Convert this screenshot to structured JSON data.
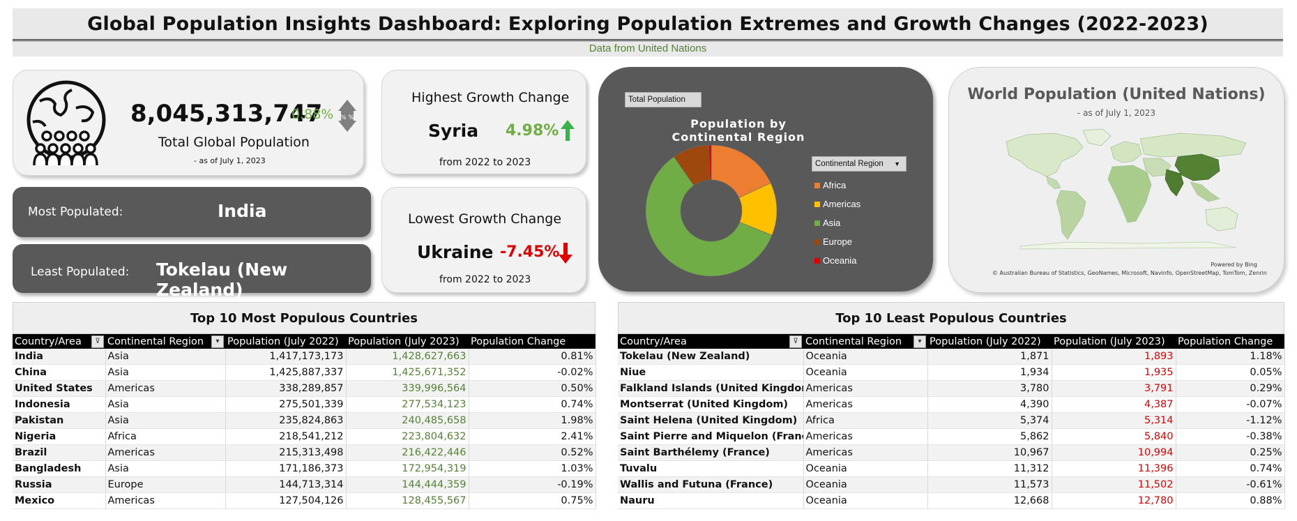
{
  "header": {
    "title": "Global Population Insights Dashboard: Exploring Population Extremes and Growth Changes (2022-2023)",
    "subtitle": "Data from United Nations"
  },
  "total_card": {
    "value": "8,045,313,747",
    "change": "0.88%",
    "icon_label": "% %",
    "label": "Total Global Population",
    "date": "- as of July 1, 2023"
  },
  "most_populated": {
    "label": "Most Populated:",
    "value": "India"
  },
  "least_populated": {
    "label": "Least Populated:",
    "value": "Tokelau (New Zealand)"
  },
  "highest_growth": {
    "title": "Highest Growth Change",
    "country": "Syria",
    "value": "4.98%",
    "period": "from 2022 to 2023"
  },
  "lowest_growth": {
    "title": "Lowest Growth Change",
    "country": "Ukraine",
    "value": "-7.45%",
    "period": "from 2022 to 2023"
  },
  "donut": {
    "field_button": "Total Population",
    "title": "Population by Continental Region",
    "filter_label": "Continental Region",
    "legend": [
      {
        "name": "Africa",
        "color": "#ed7d31"
      },
      {
        "name": "Americas",
        "color": "#ffc000"
      },
      {
        "name": "Asia",
        "color": "#70ad47"
      },
      {
        "name": "Europe",
        "color": "#9e480e"
      },
      {
        "name": "Oceania",
        "color": "#e00000"
      }
    ]
  },
  "chart_data": {
    "type": "pie",
    "title": "Population by Continental Region",
    "categories": [
      "Africa",
      "Americas",
      "Asia",
      "Europe",
      "Oceania"
    ],
    "values": [
      18,
      13,
      59,
      9,
      0.6
    ]
  },
  "map": {
    "title": "World Population (United Nations)",
    "date": "- as of July 1, 2023",
    "powered": "Powered by Bing",
    "attribution": "© Australian Bureau of Statistics, GeoNames, Microsoft, Navinfo, OpenStreetMap, TomTom, Zenrin"
  },
  "top_table": {
    "title": "Top 10 Most Populous Countries",
    "columns": [
      "Country/Area",
      "Continental Region",
      "Population (July 2022)",
      "Population (July 2023)",
      "Population Change"
    ],
    "rows": [
      [
        "India",
        "Asia",
        "1,417,173,173",
        "1,428,627,663",
        "0.81%"
      ],
      [
        "China",
        "Asia",
        "1,425,887,337",
        "1,425,671,352",
        "-0.02%"
      ],
      [
        "United States",
        "Americas",
        "338,289,857",
        "339,996,564",
        "0.50%"
      ],
      [
        "Indonesia",
        "Asia",
        "275,501,339",
        "277,534,123",
        "0.74%"
      ],
      [
        "Pakistan",
        "Asia",
        "235,824,863",
        "240,485,658",
        "1.98%"
      ],
      [
        "Nigeria",
        "Africa",
        "218,541,212",
        "223,804,632",
        "2.41%"
      ],
      [
        "Brazil",
        "Americas",
        "215,313,498",
        "216,422,446",
        "0.52%"
      ],
      [
        "Bangladesh",
        "Asia",
        "171,186,373",
        "172,954,319",
        "1.03%"
      ],
      [
        "Russia",
        "Europe",
        "144,713,314",
        "144,444,359",
        "-0.19%"
      ],
      [
        "Mexico",
        "Americas",
        "127,504,126",
        "128,455,567",
        "0.75%"
      ]
    ]
  },
  "bottom_table": {
    "title": "Top 10 Least Populous Countries",
    "columns": [
      "Country/Area",
      "Continental Region",
      "Population (July 2022)",
      "Population (July 2023)",
      "Population Change"
    ],
    "rows": [
      [
        "Tokelau (New Zealand)",
        "Oceania",
        "1,871",
        "1,893",
        "1.18%"
      ],
      [
        "Niue",
        "Oceania",
        "1,934",
        "1,935",
        "0.05%"
      ],
      [
        "Falkland Islands (United Kingdom)",
        "Americas",
        "3,780",
        "3,791",
        "0.29%"
      ],
      [
        "Montserrat (United Kingdom)",
        "Americas",
        "4,390",
        "4,387",
        "-0.07%"
      ],
      [
        "Saint Helena (United Kingdom)",
        "Africa",
        "5,374",
        "5,314",
        "-1.12%"
      ],
      [
        "Saint Pierre and Miquelon (France)",
        "Americas",
        "5,862",
        "5,840",
        "-0.38%"
      ],
      [
        "Saint Barthélemy (France)",
        "Americas",
        "10,967",
        "10,994",
        "0.25%"
      ],
      [
        "Tuvalu",
        "Oceania",
        "11,312",
        "11,396",
        "0.74%"
      ],
      [
        "Wallis and Futuna (France)",
        "Oceania",
        "11,573",
        "11,502",
        "-0.61%"
      ],
      [
        "Nauru",
        "Oceania",
        "12,668",
        "12,780",
        "0.88%"
      ]
    ]
  }
}
